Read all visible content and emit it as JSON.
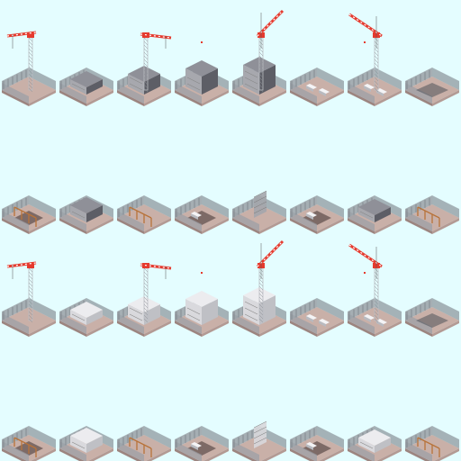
{
  "sprite_sheet": {
    "background": "#e4fdff",
    "palette": {
      "ground_light": "#c9b0a8",
      "ground_dark": "#9c8580",
      "fence": "#9aa0a6",
      "fence_dark": "#6f757c",
      "crane_red": "#e53a2e",
      "crane_mast": "#b9bcc2",
      "building_grey": "#8f9098",
      "building_light": "#d9d9dd",
      "building_dark": "#5d5e66",
      "wood": "#b8733a",
      "car_white": "#f4f4f6"
    },
    "rows": [
      {
        "label": "row-1",
        "tiles": [
          {
            "kind": "crane-site",
            "crane": "left",
            "structure": "none"
          },
          {
            "kind": "foundation",
            "crane": "none",
            "structure": "slab-grey"
          },
          {
            "kind": "crane-site",
            "crane": "right",
            "structure": "low-block"
          },
          {
            "kind": "frame",
            "crane": "none",
            "structure": "mid-block",
            "flag": true
          },
          {
            "kind": "crane-site",
            "crane": "diag",
            "structure": "tall-block"
          },
          {
            "kind": "parking",
            "crane": "none",
            "structure": "cars"
          },
          {
            "kind": "crane-site",
            "crane": "diag-left",
            "structure": "cars",
            "flag": true
          },
          {
            "kind": "foundation",
            "crane": "none",
            "structure": "pit"
          }
        ]
      },
      {
        "label": "row-2",
        "tiles": [
          {
            "kind": "pit",
            "structure": "rubble"
          },
          {
            "kind": "foundation",
            "structure": "small-block"
          },
          {
            "kind": "frame",
            "structure": "wood-frame"
          },
          {
            "kind": "pit",
            "structure": "car"
          },
          {
            "kind": "frame",
            "structure": "scaffold"
          },
          {
            "kind": "pit",
            "structure": "car"
          },
          {
            "kind": "foundation",
            "structure": "slab-grey"
          },
          {
            "kind": "frame",
            "structure": "corner"
          }
        ]
      },
      {
        "label": "row-3",
        "tiles": [
          {
            "kind": "crane-site",
            "crane": "left",
            "structure": "none"
          },
          {
            "kind": "foundation",
            "crane": "none",
            "structure": "slab-light"
          },
          {
            "kind": "crane-site",
            "crane": "right",
            "structure": "low-light"
          },
          {
            "kind": "frame",
            "crane": "none",
            "structure": "mid-light",
            "flag": true
          },
          {
            "kind": "crane-site",
            "crane": "diag",
            "structure": "tall-light"
          },
          {
            "kind": "parking",
            "crane": "none",
            "structure": "cars"
          },
          {
            "kind": "crane-site",
            "crane": "diag-left",
            "structure": "cars",
            "flag": true
          },
          {
            "kind": "foundation",
            "crane": "none",
            "structure": "pit"
          }
        ]
      },
      {
        "label": "row-4",
        "tiles": [
          {
            "kind": "pit",
            "structure": "rubble"
          },
          {
            "kind": "foundation",
            "structure": "small-light"
          },
          {
            "kind": "frame",
            "structure": "wood-frame"
          },
          {
            "kind": "pit",
            "structure": "car"
          },
          {
            "kind": "frame",
            "structure": "scaffold-light"
          },
          {
            "kind": "pit",
            "structure": "car"
          },
          {
            "kind": "foundation",
            "structure": "slab-light"
          },
          {
            "kind": "frame",
            "structure": "corner"
          }
        ]
      }
    ]
  }
}
